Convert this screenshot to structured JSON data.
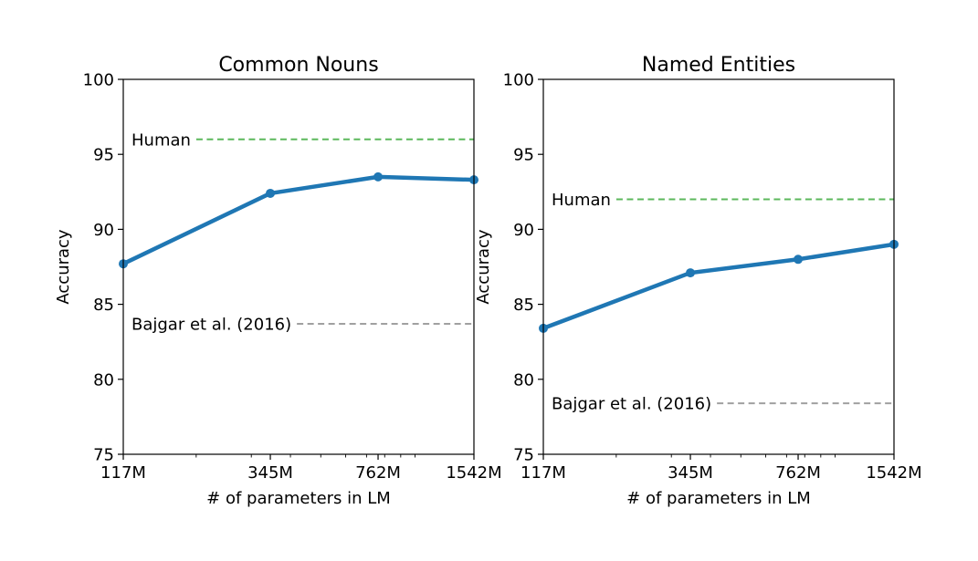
{
  "chart_data": [
    {
      "type": "line",
      "title": "Common Nouns",
      "xlabel": "# of parameters in LM",
      "ylabel": "Accuracy",
      "xscale": "log",
      "x": [
        117,
        345,
        762,
        1542
      ],
      "xtick_labels": [
        "117M",
        "345M",
        "762M",
        "1542M"
      ],
      "ylim": [
        75,
        100
      ],
      "yticks": [
        75,
        80,
        85,
        90,
        95,
        100
      ],
      "series": [
        {
          "values": [
            87.7,
            92.4,
            93.5,
            93.3
          ],
          "color": "#1f77b4"
        }
      ],
      "reference_lines": [
        {
          "name": "Human",
          "value": 96.0,
          "color": "#5cb85c",
          "label_x": 200
        },
        {
          "name": "Bajgar et al. (2016)",
          "value": 83.7,
          "color": "#a0a0a0",
          "label_x": 400
        }
      ],
      "grid": false
    },
    {
      "type": "line",
      "title": "Named Entities",
      "xlabel": "# of parameters in LM",
      "ylabel": "Accuracy",
      "xscale": "log",
      "x": [
        117,
        345,
        762,
        1542
      ],
      "xtick_labels": [
        "117M",
        "345M",
        "762M",
        "1542M"
      ],
      "ylim": [
        75,
        100
      ],
      "yticks": [
        75,
        80,
        85,
        90,
        95,
        100
      ],
      "series": [
        {
          "values": [
            83.4,
            87.1,
            88.0,
            89.0
          ],
          "color": "#1f77b4"
        }
      ],
      "reference_lines": [
        {
          "name": "Human",
          "value": 92.0,
          "color": "#5cb85c",
          "label_x": 200
        },
        {
          "name": "Bajgar et al. (2016)",
          "value": 78.4,
          "color": "#a0a0a0",
          "label_x": 400
        }
      ],
      "grid": false
    }
  ]
}
